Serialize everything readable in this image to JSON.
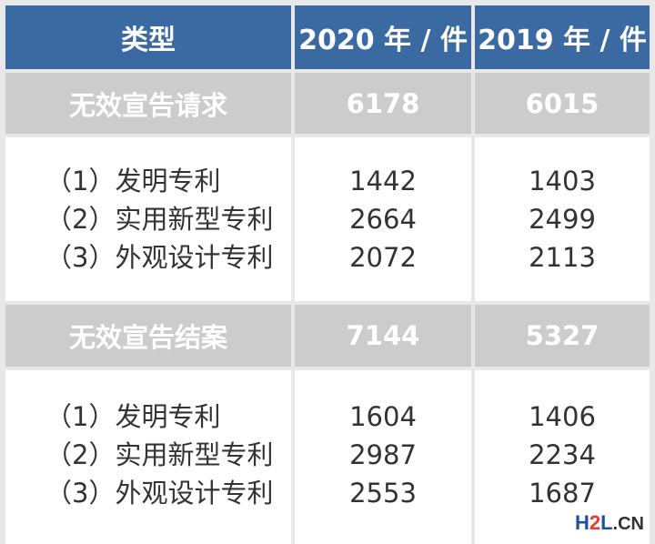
{
  "header": {
    "col_type": "类型",
    "col_2020": "2020 年 / 件",
    "col_2019": "2019 年 / 件"
  },
  "sections": [
    {
      "title": "无效宣告请求",
      "total_2020": "6178",
      "total_2019": "6015",
      "rows": [
        {
          "label": "（1）发明专利",
          "v2020": "1442",
          "v2019": "1403"
        },
        {
          "label": "（2）实用新型专利",
          "v2020": "2664",
          "v2019": "2499"
        },
        {
          "label": "（3）外观设计专利",
          "v2020": "2072",
          "v2019": "2113"
        }
      ]
    },
    {
      "title": "无效宣告结案",
      "total_2020": "7144",
      "total_2019": "5327",
      "rows": [
        {
          "label": "（1）发明专利",
          "v2020": "1604",
          "v2019": "1406"
        },
        {
          "label": "（2）实用新型专利",
          "v2020": "2987",
          "v2019": "2234"
        },
        {
          "label": "（3）外观设计专利",
          "v2020": "2553",
          "v2019": "1687"
        }
      ]
    }
  ],
  "watermark": {
    "logo_h": "H",
    "logo_2": "2",
    "logo_l": "L",
    "logo_cn": ".CN"
  },
  "colors": {
    "header_bg": "#3b6aa3",
    "section_bg": "#cccccc",
    "separator": "#e8e8e8"
  }
}
